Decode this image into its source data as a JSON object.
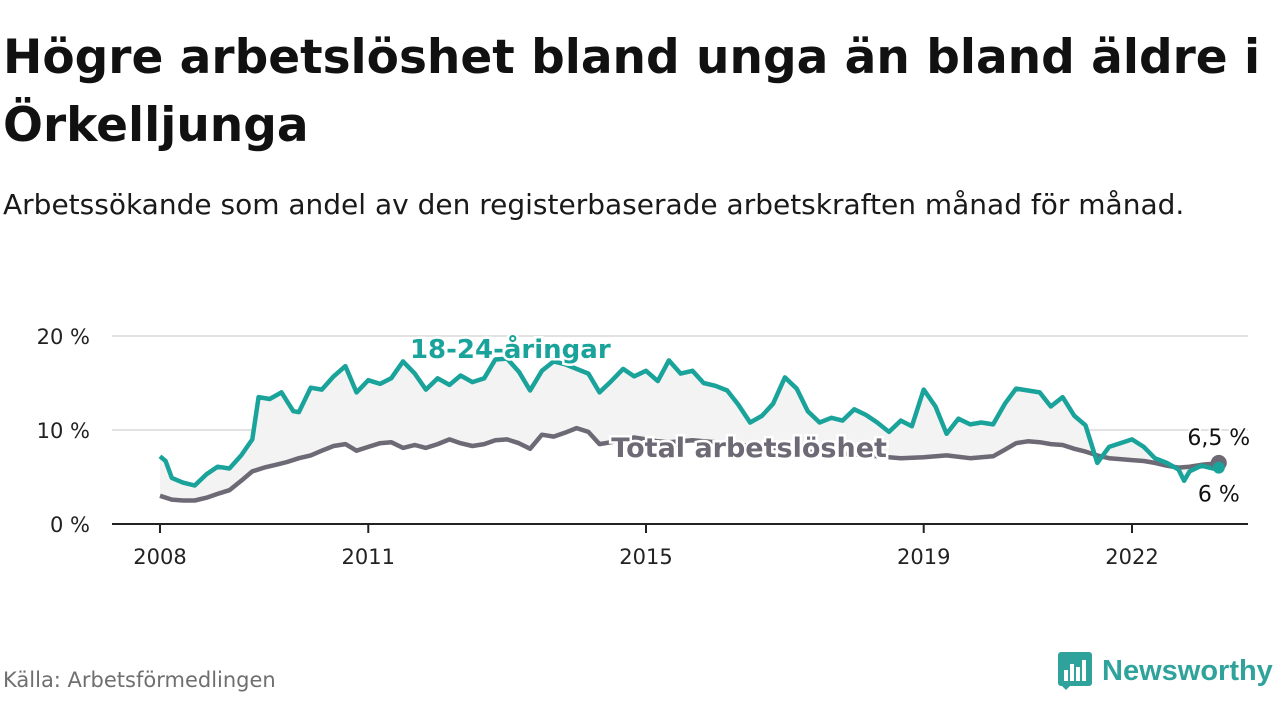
{
  "title": "Högre arbetslöshet bland unga än bland äldre i Örkelljunga",
  "subtitle": "Arbetssökande som andel av den registerbaserade arbetskraften månad för månad.",
  "source": "Källa: Arbetsförmedlingen",
  "brand": {
    "name": "Newsworthy",
    "icon": "newsworthy-logo-icon"
  },
  "colors": {
    "youth": "#1aa39a",
    "total": "#6d6a75",
    "grid": "#d9d9d9",
    "axis": "#222222",
    "band": "#f3f3f3"
  },
  "chart_data": {
    "type": "line",
    "title": "Högre arbetslöshet bland unga än bland äldre i Örkelljunga",
    "xlabel": "",
    "ylabel": "",
    "xlim": [
      2008,
      2023.8
    ],
    "ylim": [
      0,
      20
    ],
    "grid": true,
    "y_ticks": [
      {
        "value": 0,
        "label": "0 %"
      },
      {
        "value": 10,
        "label": "10 %"
      },
      {
        "value": 20,
        "label": "20 %"
      }
    ],
    "x_ticks": [
      {
        "value": 2008,
        "label": "2008"
      },
      {
        "value": 2011,
        "label": "2011"
      },
      {
        "value": 2015,
        "label": "2015"
      },
      {
        "value": 2019,
        "label": "2019"
      },
      {
        "value": 2022,
        "label": "2022"
      }
    ],
    "series": [
      {
        "name": "Total arbetslöshet",
        "label": "Total arbetslöshet",
        "last_label": "6,5 %",
        "points": [
          [
            2008.0,
            3.0
          ],
          [
            2008.17,
            2.6
          ],
          [
            2008.33,
            2.5
          ],
          [
            2008.5,
            2.5
          ],
          [
            2008.67,
            2.8
          ],
          [
            2008.83,
            3.2
          ],
          [
            2009.0,
            3.6
          ],
          [
            2009.17,
            4.6
          ],
          [
            2009.33,
            5.6
          ],
          [
            2009.5,
            6.0
          ],
          [
            2009.67,
            6.3
          ],
          [
            2009.83,
            6.6
          ],
          [
            2010.0,
            7.0
          ],
          [
            2010.17,
            7.3
          ],
          [
            2010.33,
            7.8
          ],
          [
            2010.5,
            8.3
          ],
          [
            2010.67,
            8.5
          ],
          [
            2010.83,
            7.8
          ],
          [
            2011.0,
            8.2
          ],
          [
            2011.17,
            8.6
          ],
          [
            2011.33,
            8.7
          ],
          [
            2011.5,
            8.1
          ],
          [
            2011.67,
            8.4
          ],
          [
            2011.83,
            8.1
          ],
          [
            2012.0,
            8.5
          ],
          [
            2012.17,
            9.0
          ],
          [
            2012.33,
            8.6
          ],
          [
            2012.5,
            8.3
          ],
          [
            2012.67,
            8.5
          ],
          [
            2012.83,
            8.9
          ],
          [
            2013.0,
            9.0
          ],
          [
            2013.17,
            8.6
          ],
          [
            2013.33,
            8.0
          ],
          [
            2013.5,
            9.5
          ],
          [
            2013.67,
            9.3
          ],
          [
            2013.83,
            9.7
          ],
          [
            2014.0,
            10.2
          ],
          [
            2014.17,
            9.8
          ],
          [
            2014.33,
            8.5
          ],
          [
            2014.5,
            8.7
          ],
          [
            2014.67,
            9.0
          ],
          [
            2014.83,
            9.2
          ],
          [
            2015.0,
            9.0
          ],
          [
            2015.17,
            8.8
          ],
          [
            2015.33,
            8.7
          ],
          [
            2015.5,
            8.8
          ],
          [
            2015.67,
            8.9
          ],
          [
            2015.83,
            8.8
          ],
          [
            2016.0,
            8.7
          ],
          [
            2016.33,
            8.4
          ],
          [
            2016.67,
            8.2
          ],
          [
            2017.0,
            8.0
          ],
          [
            2017.33,
            7.7
          ],
          [
            2017.67,
            7.5
          ],
          [
            2018.0,
            7.4
          ],
          [
            2018.33,
            7.2
          ],
          [
            2018.67,
            7.0
          ],
          [
            2019.0,
            7.1
          ],
          [
            2019.33,
            7.3
          ],
          [
            2019.67,
            7.0
          ],
          [
            2020.0,
            7.2
          ],
          [
            2020.17,
            7.9
          ],
          [
            2020.33,
            8.6
          ],
          [
            2020.5,
            8.8
          ],
          [
            2020.67,
            8.7
          ],
          [
            2020.83,
            8.5
          ],
          [
            2021.0,
            8.4
          ],
          [
            2021.17,
            8.0
          ],
          [
            2021.33,
            7.7
          ],
          [
            2021.5,
            7.3
          ],
          [
            2021.67,
            7.0
          ],
          [
            2021.83,
            6.9
          ],
          [
            2022.0,
            6.8
          ],
          [
            2022.17,
            6.7
          ],
          [
            2022.33,
            6.5
          ],
          [
            2022.5,
            6.2
          ],
          [
            2022.67,
            6.0
          ],
          [
            2022.83,
            6.1
          ],
          [
            2023.0,
            6.3
          ],
          [
            2023.17,
            6.4
          ],
          [
            2023.25,
            6.5
          ]
        ]
      },
      {
        "name": "18-24-åringar",
        "label": "18-24-åringar",
        "last_label": "6 %",
        "points": [
          [
            2008.0,
            7.2
          ],
          [
            2008.08,
            6.7
          ],
          [
            2008.17,
            4.9
          ],
          [
            2008.33,
            4.4
          ],
          [
            2008.5,
            4.1
          ],
          [
            2008.67,
            5.3
          ],
          [
            2008.83,
            6.1
          ],
          [
            2009.0,
            5.9
          ],
          [
            2009.17,
            7.3
          ],
          [
            2009.33,
            9.0
          ],
          [
            2009.42,
            13.5
          ],
          [
            2009.58,
            13.3
          ],
          [
            2009.75,
            14.0
          ],
          [
            2009.92,
            12.0
          ],
          [
            2010.0,
            11.9
          ],
          [
            2010.17,
            14.5
          ],
          [
            2010.33,
            14.3
          ],
          [
            2010.5,
            15.7
          ],
          [
            2010.67,
            16.8
          ],
          [
            2010.83,
            14.0
          ],
          [
            2011.0,
            15.3
          ],
          [
            2011.17,
            14.9
          ],
          [
            2011.33,
            15.5
          ],
          [
            2011.5,
            17.3
          ],
          [
            2011.67,
            16.0
          ],
          [
            2011.83,
            14.3
          ],
          [
            2012.0,
            15.5
          ],
          [
            2012.17,
            14.8
          ],
          [
            2012.33,
            15.8
          ],
          [
            2012.5,
            15.1
          ],
          [
            2012.67,
            15.5
          ],
          [
            2012.83,
            17.5
          ],
          [
            2013.0,
            17.6
          ],
          [
            2013.17,
            16.2
          ],
          [
            2013.33,
            14.2
          ],
          [
            2013.5,
            16.3
          ],
          [
            2013.67,
            17.3
          ],
          [
            2013.83,
            17.0
          ],
          [
            2014.0,
            16.5
          ],
          [
            2014.17,
            16.0
          ],
          [
            2014.33,
            14.0
          ],
          [
            2014.5,
            15.2
          ],
          [
            2014.67,
            16.5
          ],
          [
            2014.83,
            15.7
          ],
          [
            2015.0,
            16.3
          ],
          [
            2015.17,
            15.2
          ],
          [
            2015.33,
            17.4
          ],
          [
            2015.5,
            16.0
          ],
          [
            2015.67,
            16.3
          ],
          [
            2015.83,
            15.0
          ],
          [
            2016.0,
            14.7
          ],
          [
            2016.17,
            14.2
          ],
          [
            2016.33,
            12.7
          ],
          [
            2016.5,
            10.8
          ],
          [
            2016.67,
            11.5
          ],
          [
            2016.83,
            12.8
          ],
          [
            2017.0,
            15.6
          ],
          [
            2017.17,
            14.4
          ],
          [
            2017.33,
            12.0
          ],
          [
            2017.5,
            10.8
          ],
          [
            2017.67,
            11.3
          ],
          [
            2017.83,
            11.0
          ],
          [
            2018.0,
            12.2
          ],
          [
            2018.17,
            11.6
          ],
          [
            2018.33,
            10.8
          ],
          [
            2018.5,
            9.8
          ],
          [
            2018.67,
            11.0
          ],
          [
            2018.83,
            10.4
          ],
          [
            2019.0,
            14.3
          ],
          [
            2019.17,
            12.5
          ],
          [
            2019.33,
            9.6
          ],
          [
            2019.5,
            11.2
          ],
          [
            2019.67,
            10.6
          ],
          [
            2019.83,
            10.8
          ],
          [
            2020.0,
            10.6
          ],
          [
            2020.17,
            12.8
          ],
          [
            2020.33,
            14.4
          ],
          [
            2020.5,
            14.2
          ],
          [
            2020.67,
            14.0
          ],
          [
            2020.83,
            12.5
          ],
          [
            2021.0,
            13.5
          ],
          [
            2021.17,
            11.5
          ],
          [
            2021.33,
            10.5
          ],
          [
            2021.5,
            6.5
          ],
          [
            2021.67,
            8.2
          ],
          [
            2021.83,
            8.6
          ],
          [
            2022.0,
            9.0
          ],
          [
            2022.17,
            8.2
          ],
          [
            2022.33,
            7.0
          ],
          [
            2022.5,
            6.5
          ],
          [
            2022.67,
            5.8
          ],
          [
            2022.75,
            4.6
          ],
          [
            2022.83,
            5.6
          ],
          [
            2023.0,
            6.2
          ],
          [
            2023.17,
            5.9
          ],
          [
            2023.25,
            6.0
          ]
        ]
      }
    ]
  }
}
